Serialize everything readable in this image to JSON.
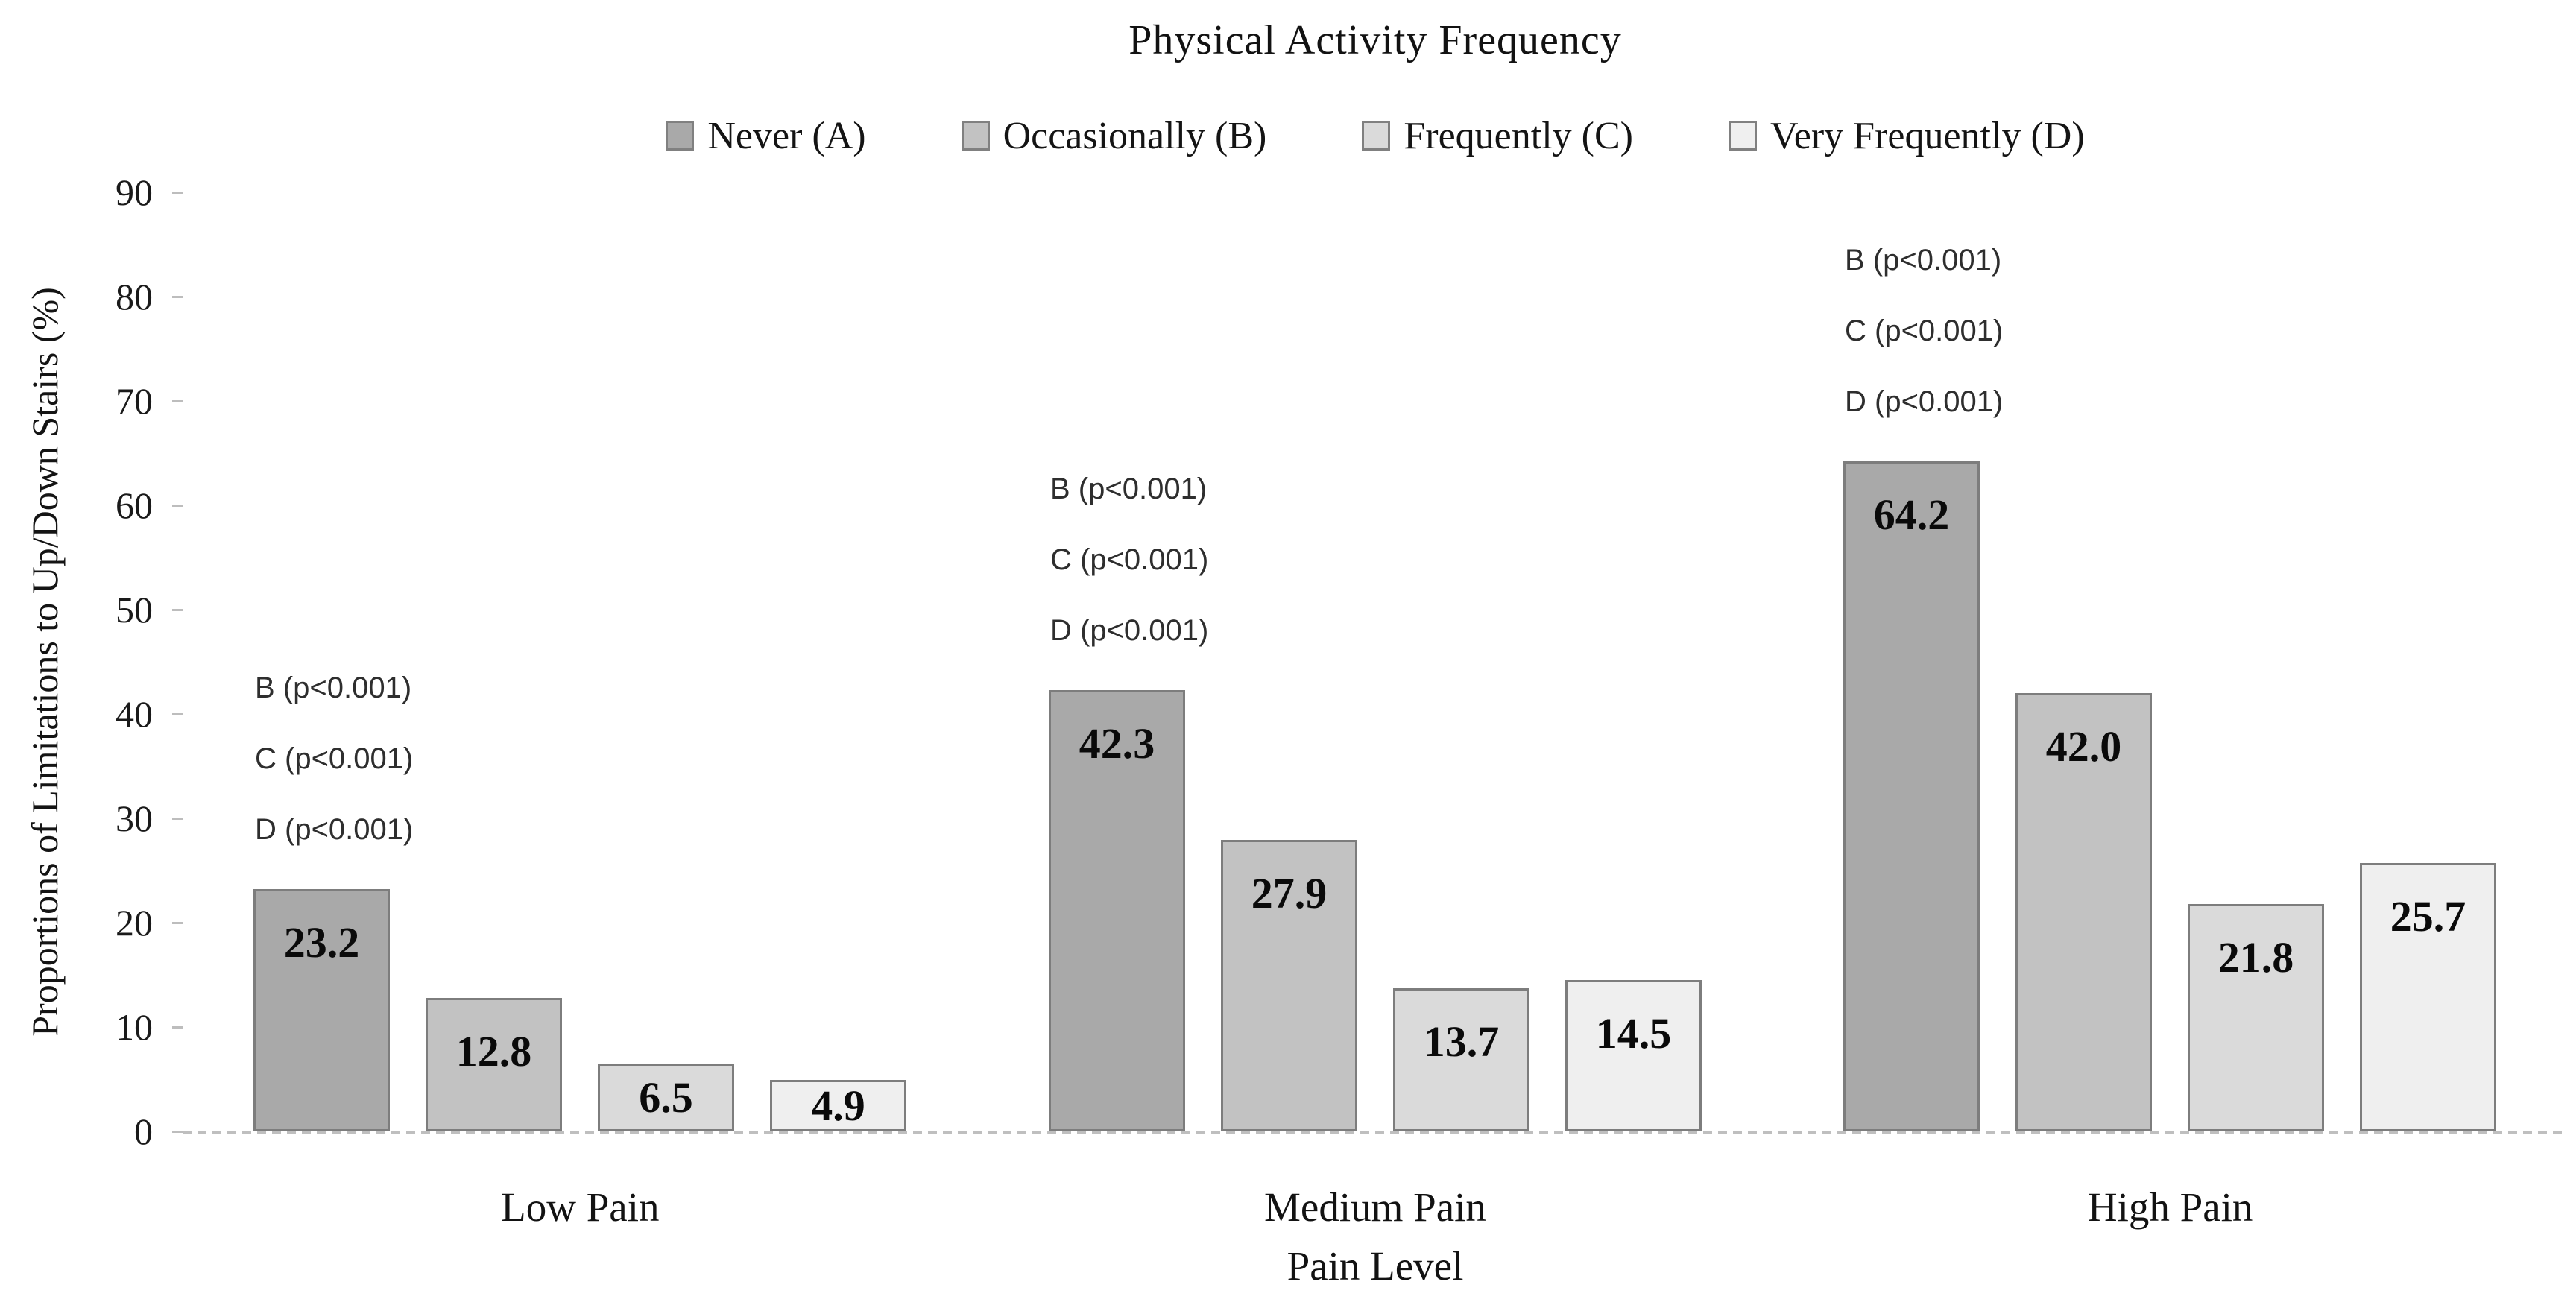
{
  "title": "Physical Activity Frequency",
  "legend": {
    "items": [
      {
        "label": "Never (A)",
        "color": "#a9a9a9"
      },
      {
        "label": "Occasionally (B)",
        "color": "#c2c2c2"
      },
      {
        "label": "Frequently (C)",
        "color": "#dadada"
      },
      {
        "label": "Very Frequently (D)",
        "color": "#efefef"
      }
    ]
  },
  "chart_data": {
    "type": "bar",
    "title": "Physical Activity Frequency",
    "xlabel": "Pain Level",
    "ylabel": "Proportions of Limitations to Up/Down Stairs (%)",
    "categories": [
      "Low Pain",
      "Medium Pain",
      "High Pain"
    ],
    "series": [
      {
        "name": "Never (A)",
        "color": "#a9a9a9",
        "values": [
          23.2,
          42.3,
          64.2
        ]
      },
      {
        "name": "Occasionally (B)",
        "color": "#c2c2c2",
        "values": [
          12.8,
          27.9,
          42.0
        ]
      },
      {
        "name": "Frequently (C)",
        "color": "#dadada",
        "values": [
          6.5,
          13.7,
          21.8
        ]
      },
      {
        "name": "Very Frequently (D)",
        "color": "#efefef",
        "values": [
          4.9,
          14.5,
          25.7
        ]
      }
    ],
    "value_labels": [
      [
        "23.2",
        "12.8",
        "6.5",
        "4.9"
      ],
      [
        "42.3",
        "27.9",
        "13.7",
        "14.5"
      ],
      [
        "64.2",
        "42.0",
        "21.8",
        "25.7"
      ]
    ],
    "annotations_per_category": [
      "B (p<0.001)",
      "C (p<0.001)",
      "D (p<0.001)"
    ],
    "yticks": [
      0,
      10,
      20,
      30,
      40,
      50,
      60,
      70,
      80,
      90
    ],
    "ylim": [
      0,
      90
    ],
    "legend_position": "top",
    "grid": false,
    "bar_border_color": "#7d7d7d",
    "axis_line_color": "#bfbfbf"
  }
}
